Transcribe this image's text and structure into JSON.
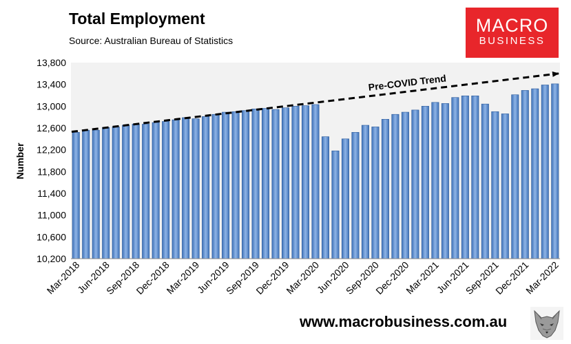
{
  "title": "Total Employment",
  "subtitle": "Source: Australian Bureau of Statistics",
  "logo": {
    "line1": "MACRO",
    "line2": "BUSINESS",
    "color": "#e8262b"
  },
  "website": "www.macrobusiness.com.au",
  "wolf_icon": "wolf-logo-icon",
  "chart_data": {
    "type": "bar",
    "ylabel": "Number",
    "ylim": [
      10200,
      13800
    ],
    "yticks": [
      10200,
      10600,
      11000,
      11400,
      11800,
      12200,
      12600,
      13000,
      13400,
      13800
    ],
    "ytick_labels": [
      "10,200",
      "10,600",
      "11,000",
      "11,400",
      "11,800",
      "12,200",
      "12,600",
      "13,000",
      "13,400",
      "13,800"
    ],
    "grid": false,
    "plot_background": "#f2f2f2",
    "bar_color": "#5b8ed3",
    "categories": [
      "Mar-2018",
      "Apr-2018",
      "May-2018",
      "Jun-2018",
      "Jul-2018",
      "Aug-2018",
      "Sep-2018",
      "Oct-2018",
      "Nov-2018",
      "Dec-2018",
      "Jan-2019",
      "Feb-2019",
      "Mar-2019",
      "Apr-2019",
      "May-2019",
      "Jun-2019",
      "Jul-2019",
      "Aug-2019",
      "Sep-2019",
      "Oct-2019",
      "Nov-2019",
      "Dec-2019",
      "Jan-2020",
      "Feb-2020",
      "Mar-2020",
      "Apr-2020",
      "May-2020",
      "Jun-2020",
      "Jul-2020",
      "Aug-2020",
      "Sep-2020",
      "Oct-2020",
      "Nov-2020",
      "Dec-2020",
      "Jan-2021",
      "Feb-2021",
      "Mar-2021",
      "Apr-2021",
      "May-2021",
      "Jun-2021",
      "Jul-2021",
      "Aug-2021",
      "Sep-2021",
      "Oct-2021",
      "Nov-2021",
      "Dec-2021",
      "Jan-2022",
      "Feb-2022",
      "Mar-2022"
    ],
    "values": [
      12520,
      12560,
      12560,
      12610,
      12620,
      12650,
      12670,
      12670,
      12700,
      12720,
      12750,
      12790,
      12770,
      12810,
      12850,
      12890,
      12900,
      12920,
      12950,
      12960,
      12940,
      12970,
      13000,
      13010,
      13030,
      12440,
      12180,
      12400,
      12520,
      12650,
      12620,
      12760,
      12850,
      12890,
      12930,
      13000,
      13070,
      13050,
      13160,
      13190,
      13190,
      13040,
      12900,
      12860,
      13210,
      13290,
      13320,
      13390,
      13410
    ],
    "x_tick_labels": [
      "Mar-2018",
      "Jun-2018",
      "Sep-2018",
      "Dec-2018",
      "Mar-2019",
      "Jun-2019",
      "Sep-2019",
      "Dec-2019",
      "Mar-2020",
      "Jun-2020",
      "Sep-2020",
      "Dec-2020",
      "Mar-2021",
      "Jun-2021",
      "Sep-2021",
      "Dec-2021",
      "Mar-2022"
    ],
    "annotation": {
      "text": "Pre-COVID Trend",
      "start": {
        "x": "Mar-2018",
        "y": 12530
      },
      "end": {
        "x": "Mar-2022",
        "y": 13600
      }
    }
  }
}
